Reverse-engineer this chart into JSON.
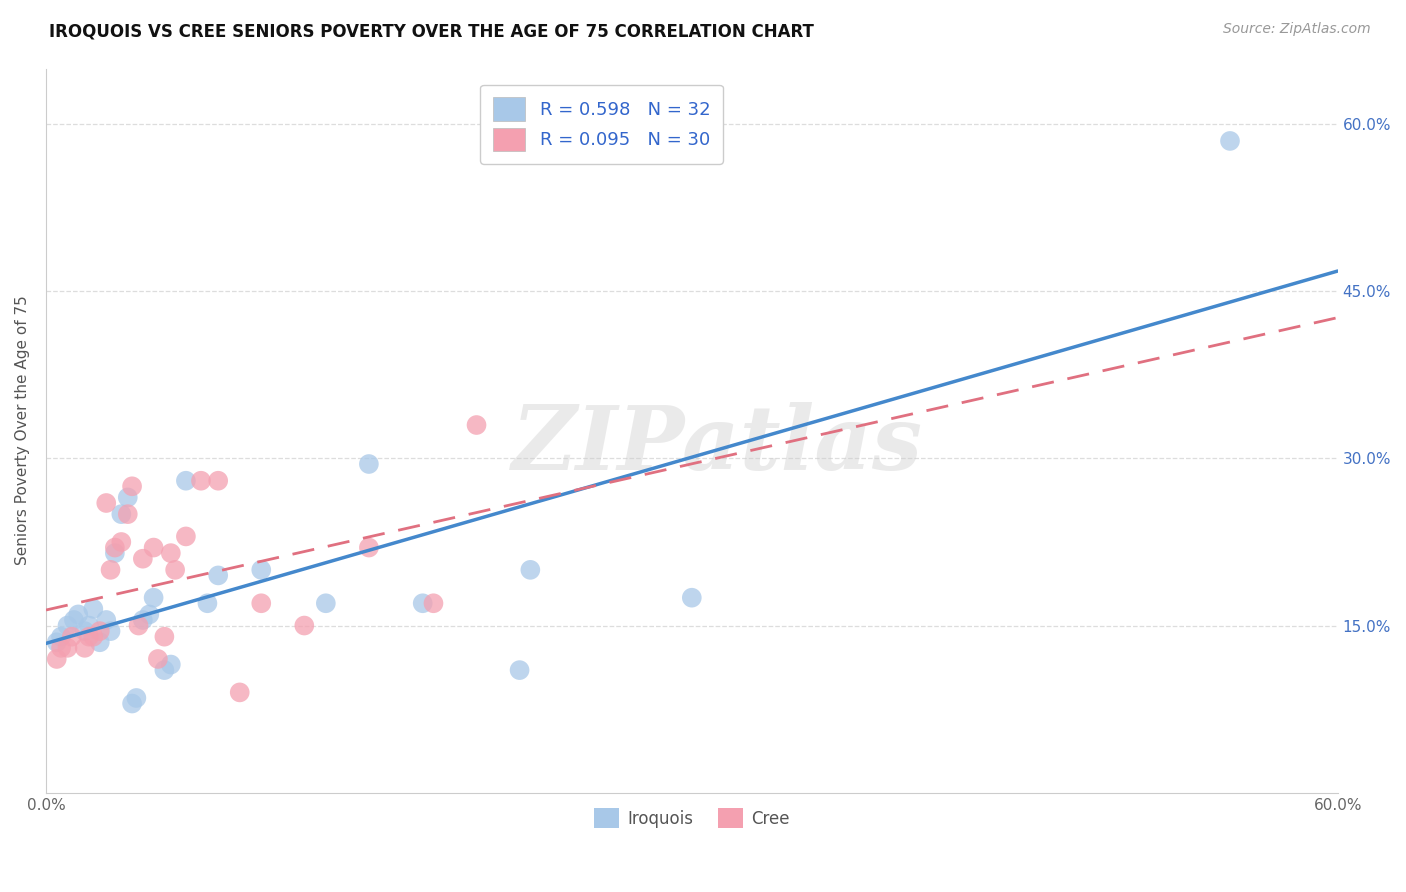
{
  "title": "IROQUOIS VS CREE SENIORS POVERTY OVER THE AGE OF 75 CORRELATION CHART",
  "source_text": "Source: ZipAtlas.com",
  "ylabel": "Seniors Poverty Over the Age of 75",
  "xlim": [
    0.0,
    0.6
  ],
  "ylim": [
    0.0,
    0.65
  ],
  "xtick_vals": [
    0.0,
    0.1,
    0.2,
    0.3,
    0.4,
    0.5,
    0.6
  ],
  "xtick_labels": [
    "0.0%",
    "",
    "",
    "",
    "",
    "",
    "60.0%"
  ],
  "ytick_vals": [
    0.15,
    0.3,
    0.45,
    0.6
  ],
  "ytick_labels_right": [
    "15.0%",
    "30.0%",
    "45.0%",
    "60.0%"
  ],
  "watermark": "ZIPatlas",
  "iroquois_color": "#a8c8e8",
  "cree_color": "#f4a0b0",
  "iroquois_line_color": "#4488cc",
  "cree_line_color": "#e07080",
  "iroquois_R": 0.598,
  "iroquois_N": 32,
  "cree_R": 0.095,
  "cree_N": 30,
  "legend_label_iroquois": "Iroquois",
  "legend_label_cree": "Cree",
  "grid_color": "#dddddd",
  "iroquois_x": [
    0.005,
    0.007,
    0.01,
    0.013,
    0.015,
    0.018,
    0.02,
    0.022,
    0.025,
    0.028,
    0.03,
    0.032,
    0.035,
    0.038,
    0.04,
    0.042,
    0.045,
    0.048,
    0.05,
    0.055,
    0.058,
    0.065,
    0.075,
    0.08,
    0.1,
    0.13,
    0.15,
    0.175,
    0.22,
    0.225,
    0.3,
    0.55
  ],
  "iroquois_y": [
    0.135,
    0.14,
    0.15,
    0.155,
    0.16,
    0.145,
    0.15,
    0.165,
    0.135,
    0.155,
    0.145,
    0.215,
    0.25,
    0.265,
    0.08,
    0.085,
    0.155,
    0.16,
    0.175,
    0.11,
    0.115,
    0.28,
    0.17,
    0.195,
    0.2,
    0.17,
    0.295,
    0.17,
    0.11,
    0.2,
    0.175,
    0.585
  ],
  "cree_x": [
    0.005,
    0.007,
    0.01,
    0.012,
    0.018,
    0.02,
    0.022,
    0.025,
    0.028,
    0.03,
    0.032,
    0.035,
    0.038,
    0.04,
    0.043,
    0.045,
    0.05,
    0.052,
    0.055,
    0.058,
    0.06,
    0.065,
    0.072,
    0.08,
    0.09,
    0.1,
    0.12,
    0.15,
    0.18,
    0.2
  ],
  "cree_y": [
    0.12,
    0.13,
    0.13,
    0.14,
    0.13,
    0.14,
    0.14,
    0.145,
    0.26,
    0.2,
    0.22,
    0.225,
    0.25,
    0.275,
    0.15,
    0.21,
    0.22,
    0.12,
    0.14,
    0.215,
    0.2,
    0.23,
    0.28,
    0.28,
    0.09,
    0.17,
    0.15,
    0.22,
    0.17,
    0.33
  ]
}
